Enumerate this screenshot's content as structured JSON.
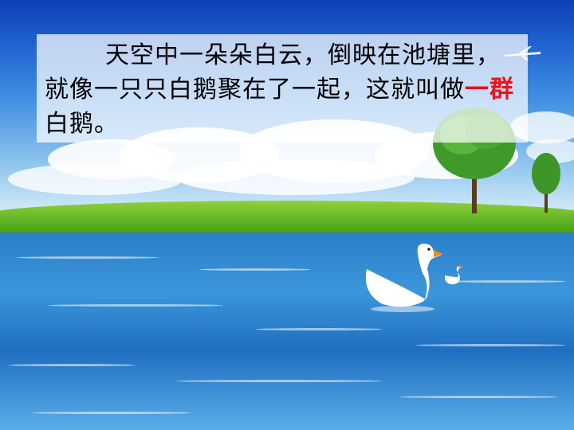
{
  "slide": {
    "text_part1": "天空中一朵朵白云，倒映在池塘里，就像一只只白鹅聚在了一起，这就叫做",
    "text_highlight": "一群",
    "text_part2": "白鹅。",
    "highlight_color": "#e8141e",
    "text_color": "#000000"
  },
  "colors": {
    "sky_top": "#0d3fb3",
    "grass": "#4ea71c",
    "water": "#2a7ec9"
  }
}
